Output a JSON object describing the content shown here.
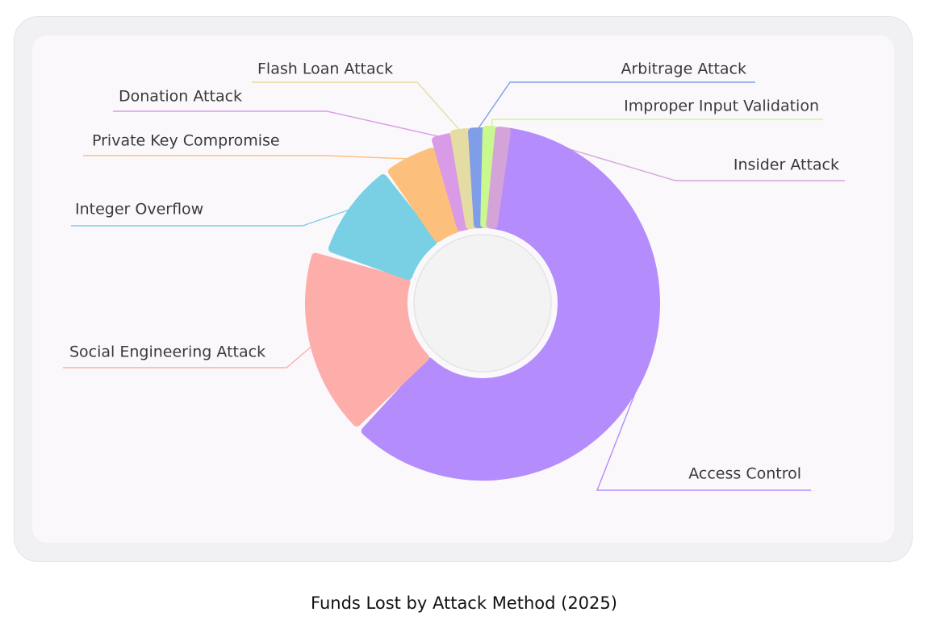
{
  "caption": "Funds Lost by Attack Method (2025)",
  "chart_data": {
    "type": "pie",
    "variant": "rose-donut",
    "title": "Funds Lost by Attack Method (2025)",
    "slices": [
      {
        "label": "Access Control",
        "value": 70.0,
        "color": "#b48cfc"
      },
      {
        "label": "Social Engineering Attack",
        "value": 13.0,
        "color": "#fdaeaa"
      },
      {
        "label": "Integer Overflow",
        "value": 8.5,
        "color": "#79d0e4"
      },
      {
        "label": "Private Key Compromise",
        "value": 2.8,
        "color": "#fdbf7c"
      },
      {
        "label": "Donation Attack",
        "value": 1.3,
        "color": "#d99be6"
      },
      {
        "label": "Flash Loan Attack",
        "value": 1.1,
        "color": "#e5dca3"
      },
      {
        "label": "Arbitrage Attack",
        "value": 1.0,
        "color": "#7f9de8"
      },
      {
        "label": "Improper Input Validation",
        "value": 1.0,
        "color": "#c9f88e"
      },
      {
        "label": "Insider Attack",
        "value": 0.8,
        "color": "#d4a4d9"
      }
    ],
    "legend": "leader-line labels"
  }
}
